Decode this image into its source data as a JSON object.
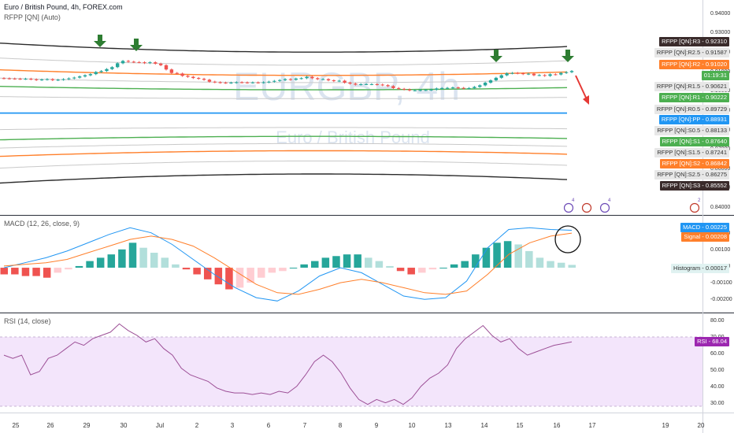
{
  "header": {
    "symbol_line": "Euro / British Pound, 4h, FOREX.com",
    "pivot_indicator": "RFPP [QN] (Auto)",
    "macd_indicator": "MACD (12, 26, close, 9)",
    "rsi_indicator": "RSI (14, close)"
  },
  "watermark": {
    "ticker": "EURGBP, 4h",
    "name": "Euro / British Pound"
  },
  "colors": {
    "up_candle": "#26a69a",
    "down_candle": "#ef5350",
    "pivot": "#2196f3",
    "support": "#4caf50",
    "resistance": "#ff7f2a",
    "r3s3": "#2b2b2b",
    "macd": "#2196f3",
    "signal": "#ff7f2a",
    "rsi": "#9c4f96",
    "rsi_band": "#f3e5fb",
    "arrow_green": "#2e7d32",
    "arrow_red": "#e53935"
  },
  "price_axis": {
    "ticks": [
      "0.94000",
      "0.93000",
      "0.92000",
      "0.91000",
      "0.90000",
      "0.89000",
      "0.88000",
      "0.87000",
      "0.86000",
      "0.85000",
      "0.84000"
    ]
  },
  "pivot_tags": [
    {
      "label": "RFPP [QN]:R3",
      "value": "0.92310",
      "kind": "dark"
    },
    {
      "label": "RFPP [QN]:R2.5",
      "value": "0.91587",
      "kind": "grey"
    },
    {
      "label": "RFPP [QN]:R2",
      "value": "0.91020",
      "kind": "orange"
    },
    {
      "label": "01:19:31",
      "value": "",
      "kind": "green"
    },
    {
      "label": "RFPP [QN]:R1.5",
      "value": "0.90621",
      "kind": "grey"
    },
    {
      "label": "RFPP [QN]:R1",
      "value": "0.90222",
      "kind": "green"
    },
    {
      "label": "RFPP [QN]:R0.5",
      "value": "0.89729",
      "kind": "grey"
    },
    {
      "label": "RFPP [QN]:PP",
      "value": "0.88931",
      "kind": "blue"
    },
    {
      "label": "RFPP [QN]:S0.5",
      "value": "0.88133",
      "kind": "grey"
    },
    {
      "label": "RFPP [QN]:S1",
      "value": "0.87640",
      "kind": "green"
    },
    {
      "label": "RFPP [QN]:S1.5",
      "value": "0.87241",
      "kind": "grey"
    },
    {
      "label": "RFPP [QN]:S2",
      "value": "0.86842",
      "kind": "orange"
    },
    {
      "label": "RFPP [QN]:S2.5",
      "value": "0.86275",
      "kind": "grey"
    },
    {
      "label": "RFPP [QN]:S3",
      "value": "0.85552",
      "kind": "dark"
    }
  ],
  "macd_axis": {
    "ticks": [
      "0.00200",
      "0.00100",
      "0.00000",
      "-0.00100",
      "-0.00200"
    ]
  },
  "macd_tags": [
    {
      "label": "MACD",
      "value": "0.00225",
      "kind": "blue"
    },
    {
      "label": "Signal",
      "value": "0.00208",
      "kind": "orange"
    },
    {
      "label": "Histogram",
      "value": "0.00017",
      "kind": "light"
    }
  ],
  "rsi_axis": {
    "ticks": [
      "80.00",
      "70.00",
      "60.00",
      "50.00",
      "40.00",
      "30.00"
    ]
  },
  "rsi_tag": {
    "label": "RSI",
    "value": "68.04"
  },
  "time_axis": {
    "labels": [
      "25",
      "26",
      "29",
      "30",
      "Jul",
      "2",
      "3",
      "6",
      "7",
      "8",
      "9",
      "10",
      "13",
      "14",
      "15",
      "16",
      "17",
      "19",
      "20"
    ]
  },
  "event_markers": [
    "4",
    "4",
    "2"
  ],
  "chart_data": [
    {
      "type": "candlestick",
      "title": "Euro / British Pound, 4h, FOREX.com",
      "ylim": [
        0.838,
        0.946
      ],
      "close": [
        0.9072,
        0.9071,
        0.907,
        0.9069,
        0.907,
        0.9067,
        0.9064,
        0.9066,
        0.9068,
        0.9063,
        0.9065,
        0.9068,
        0.9072,
        0.9076,
        0.9082,
        0.9088,
        0.9094,
        0.9105,
        0.911,
        0.912,
        0.913,
        0.915,
        0.9162,
        0.9158,
        0.9156,
        0.9155,
        0.9151,
        0.9155,
        0.9148,
        0.914,
        0.9118,
        0.91,
        0.9097,
        0.9085,
        0.908,
        0.9074,
        0.907,
        0.9065,
        0.9055,
        0.9052,
        0.905,
        0.9049,
        0.905,
        0.9052,
        0.9051,
        0.905,
        0.9051,
        0.905,
        0.9052,
        0.9055,
        0.9059,
        0.9063,
        0.9068,
        0.9065,
        0.9071,
        0.9073,
        0.908,
        0.9073,
        0.9068,
        0.9068,
        0.9062,
        0.9058,
        0.906,
        0.905,
        0.9045,
        0.904,
        0.9042,
        0.9042,
        0.9042,
        0.904,
        0.9037,
        0.9032,
        0.9022,
        0.9018,
        0.9015,
        0.901,
        0.901,
        0.9012,
        0.9012,
        0.9014,
        0.902,
        0.9022,
        0.9023,
        0.9025,
        0.9023,
        0.902,
        0.9022,
        0.9028,
        0.9036,
        0.905,
        0.9062,
        0.9075,
        0.9088,
        0.9098,
        0.91,
        0.9098,
        0.9094,
        0.9096,
        0.9088,
        0.9089,
        0.9085,
        0.9093,
        0.9092,
        0.91,
        0.9104,
        0.911
      ],
      "pivot_levels": {
        "R3": 0.9231,
        "R2.5": 0.91587,
        "R2": 0.9102,
        "R1.5": 0.90621,
        "R1": 0.90222,
        "R0.5": 0.89729,
        "PP": 0.88931,
        "S0.5": 0.88133,
        "S1": 0.8764,
        "S1.5": 0.87241,
        "S2": 0.86842,
        "S2.5": 0.86275,
        "S3": 0.85552
      }
    },
    {
      "type": "line",
      "title": "MACD (12, 26, close, 9)",
      "ylim": [
        -0.0026,
        0.0027
      ],
      "series": [
        {
          "name": "MACD",
          "values": [
            0.0,
            0.0003,
            0.0006,
            0.001,
            0.0015,
            0.002,
            0.0024,
            0.0021,
            0.0014,
            0.0005,
            -0.0004,
            -0.0012,
            -0.0018,
            -0.002,
            -0.0014,
            -0.0005,
            0.0,
            -0.0003,
            -0.001,
            -0.0017,
            -0.0019,
            -0.0018,
            -0.0008,
            0.0012,
            0.0023,
            0.0024,
            0.0023,
            0.00225
          ]
        },
        {
          "name": "Signal",
          "values": [
            0.0001,
            0.0002,
            0.0003,
            0.0005,
            0.0009,
            0.0013,
            0.0017,
            0.0019,
            0.0017,
            0.0013,
            0.0006,
            -0.0002,
            -0.001,
            -0.0015,
            -0.0016,
            -0.0013,
            -0.0009,
            -0.0007,
            -0.0009,
            -0.0012,
            -0.0015,
            -0.0016,
            -0.0014,
            -0.0004,
            0.0008,
            0.0015,
            0.0019,
            0.00208
          ]
        }
      ],
      "histogram": [
        -0.0004,
        -0.0004,
        -0.0005,
        -0.0005,
        -0.0006,
        -0.0003,
        -0.0001,
        0.0001,
        0.0004,
        0.0006,
        0.0008,
        0.0011,
        0.0015,
        0.0012,
        0.0009,
        0.0006,
        0.0002,
        -0.0001,
        -0.0004,
        -0.0007,
        -0.001,
        -0.0013,
        -0.0012,
        -0.0009,
        -0.0006,
        -0.0003,
        -0.0002,
        0.0,
        0.0002,
        0.0004,
        0.0006,
        0.0007,
        0.0008,
        0.0008,
        0.0006,
        0.0004,
        0.0001,
        -0.0002,
        -0.0004,
        -0.0003,
        -0.0001,
        0.0,
        0.0002,
        0.0004,
        0.0008,
        0.0012,
        0.0015,
        0.0016,
        0.0014,
        0.001,
        0.0006,
        0.0004,
        0.0003,
        0.00017
      ]
    },
    {
      "type": "line",
      "title": "RSI (14, close)",
      "ylim": [
        26,
        84
      ],
      "series": [
        {
          "name": "RSI",
          "values": [
            60,
            58,
            60,
            48,
            50,
            58,
            60,
            64,
            68,
            66,
            70,
            72,
            74,
            79,
            75,
            72,
            68,
            70,
            64,
            60,
            52,
            48,
            46,
            44,
            40,
            38,
            37,
            37,
            36,
            37,
            36,
            38,
            37,
            41,
            48,
            56,
            60,
            56,
            49,
            40,
            33,
            30,
            33,
            31,
            33,
            30,
            34,
            41,
            46,
            49,
            54,
            64,
            70,
            74,
            78,
            72,
            68,
            70,
            64,
            60,
            62,
            64,
            66,
            67,
            68.04
          ]
        }
      ]
    }
  ]
}
